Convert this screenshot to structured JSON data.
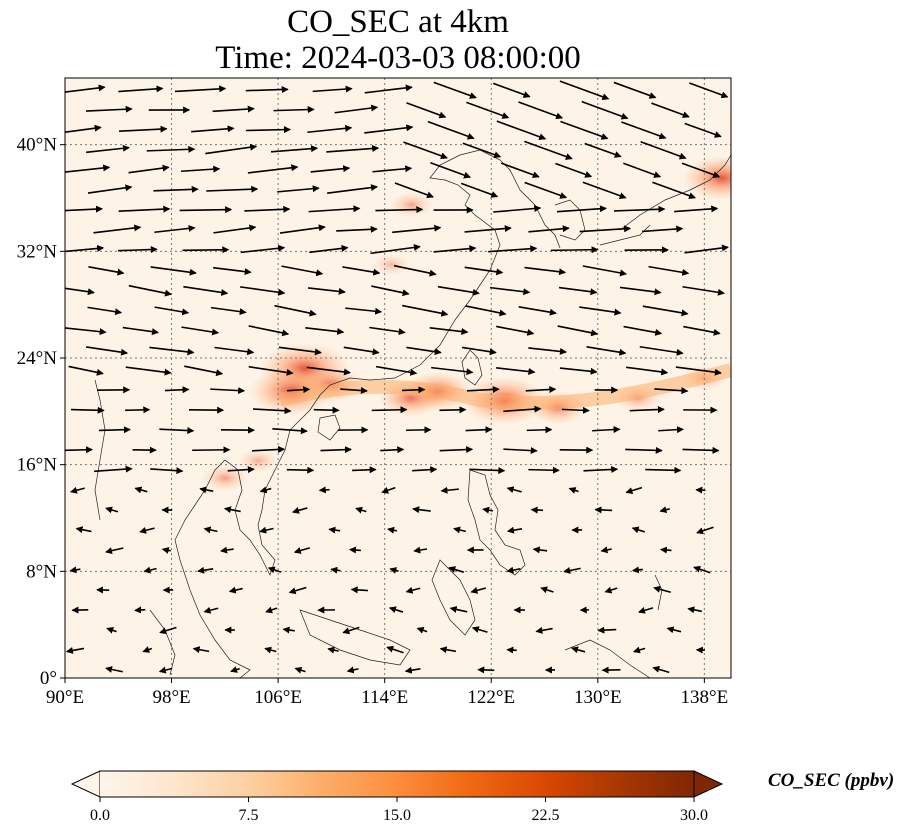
{
  "figure": {
    "title_line1": "CO_SEC at 4km",
    "title_line2": "Time: 2024-03-03 08:00:00"
  },
  "map": {
    "lon_ticks": [
      "90°E",
      "98°E",
      "106°E",
      "114°E",
      "122°E",
      "130°E",
      "138°E"
    ],
    "lat_ticks": [
      "0°",
      "8°N",
      "16°N",
      "24°N",
      "32°N",
      "40°N"
    ],
    "lon_values": [
      90,
      98,
      106,
      114,
      122,
      130,
      138
    ],
    "lat_values": [
      0,
      8,
      16,
      24,
      32,
      40
    ],
    "extent": {
      "lon_min": 90,
      "lon_max": 140,
      "lat_min": 0,
      "lat_max": 45
    },
    "gridlines": true,
    "plumes": [
      {
        "lon": 108,
        "lat": 23.2,
        "value": 22
      },
      {
        "lon": 107,
        "lat": 21.5,
        "value": 20
      },
      {
        "lon": 110,
        "lat": 22,
        "value": 13
      },
      {
        "lon": 116,
        "lat": 21,
        "value": 14
      },
      {
        "lon": 118,
        "lat": 21.5,
        "value": 15
      },
      {
        "lon": 123,
        "lat": 20.8,
        "value": 20
      },
      {
        "lon": 127,
        "lat": 20.3,
        "value": 12
      },
      {
        "lon": 133,
        "lat": 21,
        "value": 8
      },
      {
        "lon": 138,
        "lat": 22.5,
        "value": 7
      },
      {
        "lon": 139.3,
        "lat": 37.5,
        "value": 18
      },
      {
        "lon": 116,
        "lat": 35.5,
        "value": 7
      },
      {
        "lon": 114.5,
        "lat": 31,
        "value": 5
      },
      {
        "lon": 102,
        "lat": 15,
        "value": 8
      },
      {
        "lon": 104.5,
        "lat": 16.3,
        "value": 6
      }
    ]
  },
  "colorbar": {
    "label": "CO_SEC (ppbv)",
    "ticks": [
      "0.0",
      "7.5",
      "15.0",
      "22.5",
      "30.0"
    ],
    "min": 0,
    "max": 30,
    "extend": "both",
    "colormap": [
      "#fff5eb",
      "#fee6ce",
      "#fdd0a2",
      "#fdae6b",
      "#fd8d3c",
      "#f16913",
      "#d94801",
      "#a63603",
      "#7f2704"
    ]
  }
}
